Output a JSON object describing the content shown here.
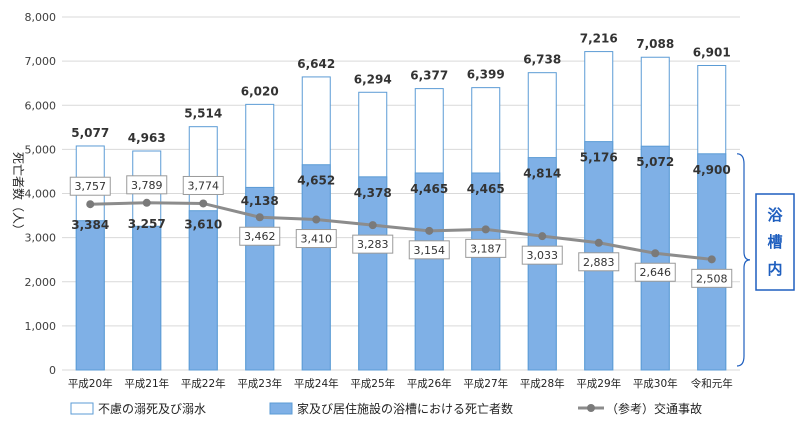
{
  "chart_data": {
    "type": "bar",
    "stacked": false,
    "categories": [
      "平成20年",
      "平成21年",
      "平成22年",
      "平成23年",
      "平成24年",
      "平成25年",
      "平成26年",
      "平成27年",
      "平成28年",
      "平成29年",
      "平成30年",
      "令和元年"
    ],
    "series": [
      {
        "name": "不慮の溺死及び溺水",
        "type": "bar",
        "values": [
          5077,
          4963,
          5514,
          6020,
          6642,
          6294,
          6377,
          6399,
          6738,
          7216,
          7088,
          6901
        ],
        "color": "#ffffff",
        "stroke": "#5b9bd5"
      },
      {
        "name": "家及び居住施設の浴槽における死亡者数",
        "type": "bar",
        "values": [
          3384,
          3257,
          3610,
          4138,
          4652,
          4378,
          4465,
          4465,
          4814,
          5176,
          5072,
          4900
        ],
        "color": "#7fb0e6",
        "stroke": "#5b9bd5"
      },
      {
        "name": "（参考）交通事故",
        "type": "line",
        "values": [
          3757,
          3789,
          3774,
          3462,
          3410,
          3283,
          3154,
          3187,
          3033,
          2883,
          2646,
          2508
        ],
        "color": "#8c8c8c"
      }
    ],
    "total_labels": [
      "5,077",
      "4,963",
      "5,514",
      "6,020",
      "6,642",
      "6,294",
      "6,377",
      "6,399",
      "6,738",
      "7,216",
      "7,088",
      "6,901"
    ],
    "inner_labels": [
      "3,384",
      "3,257",
      "3,610",
      "4,138",
      "4,652",
      "4,378",
      "4,465",
      "4,465",
      "4,814",
      "5,176",
      "5,072",
      "4,900"
    ],
    "ref_labels": [
      "3,757",
      "3,789",
      "3,774",
      "3,462",
      "3,410",
      "3,283",
      "3,154",
      "3,187",
      "3,033",
      "2,883",
      "2,646",
      "2,508"
    ],
    "ylabel": "死亡者数（人）",
    "ylim": [
      0,
      8000
    ],
    "yticks": [
      0,
      1000,
      2000,
      3000,
      4000,
      5000,
      6000,
      7000,
      8000
    ],
    "ytick_labels": [
      "0",
      "1,000",
      "2,000",
      "3,000",
      "4,000",
      "5,000",
      "6,000",
      "7,000",
      "8,000"
    ],
    "grid": true,
    "legend_position": "bottom",
    "annotation": {
      "text": "浴槽内",
      "color": "#1f5fbf"
    }
  }
}
